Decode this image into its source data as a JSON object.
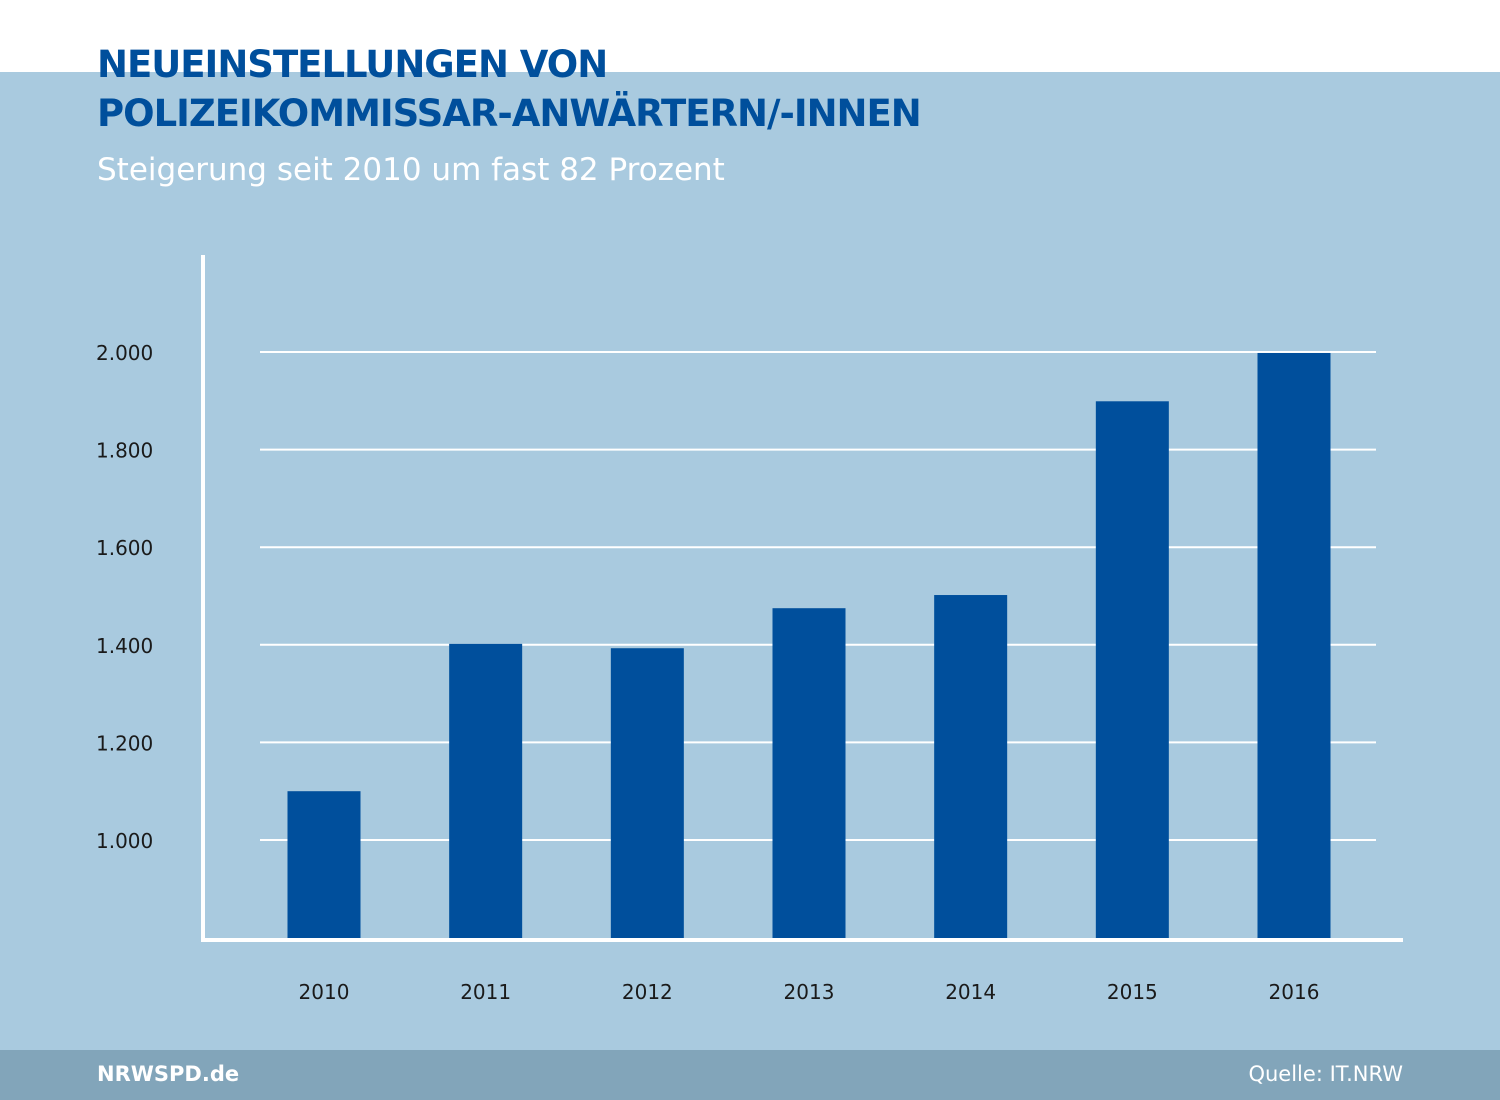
{
  "header": {
    "title_line1": "NEUEINSTELLUNGEN VON",
    "title_line2": "POLIZEIKOMMISSAR-ANWÄRTERN/-INNEN",
    "subtitle": "Steigerung seit 2010 um fast 82 Prozent"
  },
  "footer": {
    "brand": "NRWSPD.de",
    "source": "Quelle: IT.NRW"
  },
  "colors": {
    "bar": "#004f9c",
    "background": "#a9cadf",
    "footer": "#82a5ba",
    "title": "#004f9c"
  },
  "chart_data": {
    "type": "bar",
    "title": "NEUEINSTELLUNGEN VON POLIZEIKOMMISSAR-ANWÄRTERN/-INNEN",
    "subtitle": "Steigerung seit 2010 um fast 82 Prozent",
    "categories": [
      "2010",
      "2011",
      "2012",
      "2013",
      "2014",
      "2015",
      "2016"
    ],
    "values": [
      1100,
      1402,
      1393,
      1475,
      1502,
      1899,
      1998
    ],
    "ylim": [
      800,
      2200
    ],
    "yticks": [
      1000,
      1200,
      1400,
      1600,
      1800,
      2000
    ],
    "ytick_labels": [
      "1.000",
      "1.200",
      "1.400",
      "1.600",
      "1.800",
      "2.000"
    ],
    "grid": true,
    "xlabel": "",
    "ylabel": ""
  }
}
